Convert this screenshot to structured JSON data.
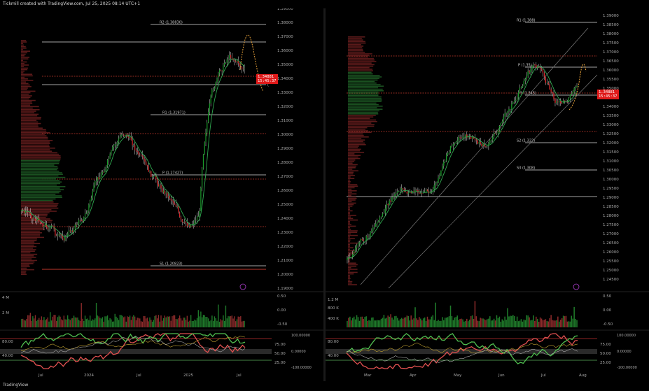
{
  "header": {
    "text": "Tickmill created with TradingView.com, Jul 25, 2025 08:14 UTC+1"
  },
  "footer": {
    "logo": "TradingView"
  },
  "colors": {
    "up": "#1a9c2a",
    "down": "#e0262a",
    "pivot": "#ffffff",
    "dotted": "#c0392b",
    "profile": "#6b1e1e",
    "profile_hi": "#1e5e26",
    "panel_bg": "#000000"
  },
  "left": {
    "axis": [
      "1.39000",
      "1.38000",
      "1.37000",
      "1.36000",
      "1.35000",
      "1.34000",
      "1.33000",
      "1.32000",
      "1.31000",
      "1.30000",
      "1.29000",
      "1.28000",
      "1.27000",
      "1.26000",
      "1.25000",
      "1.24000",
      "1.23000",
      "1.22000",
      "1.21000",
      "1.20000",
      "1.19000"
    ],
    "levels": {
      "r2": "R2 (1.38830)",
      "r1": "R1 (1.31971)",
      "p": "P (1.27427)",
      "s1": "S1 (1.20823)"
    },
    "level_suffix": "(",
    "price_tag": {
      "price": "1.34881",
      "time": "15:45:37"
    },
    "vol_axis": [
      "4 M",
      "2 M"
    ],
    "osc1_axis": [
      "0.50",
      "0.00",
      "-0.50"
    ],
    "osc2_axis": [
      "75.00",
      "50.00",
      "25.00"
    ],
    "osc2_left": [
      "80.00",
      "40.00"
    ],
    "osc3_axis": [
      "100.00000",
      "0.00000",
      "-100.00000"
    ],
    "time_axis": [
      "Jul",
      "2024",
      "Jul",
      "2025",
      "Jul"
    ]
  },
  "right": {
    "axis": [
      "1.39000",
      "1.38500",
      "1.38000",
      "1.37500",
      "1.37000",
      "1.36500",
      "1.36000",
      "1.35500",
      "1.35000",
      "1.34500",
      "1.34000",
      "1.33500",
      "1.33000",
      "1.32500",
      "1.32000",
      "1.31500",
      "1.31000",
      "1.30500",
      "1.30000",
      "1.29500",
      "1.29000",
      "1.28500",
      "1.28000",
      "1.27500",
      "1.27000",
      "1.26500",
      "1.26000",
      "1.25500",
      "1.25000",
      "1.24500"
    ],
    "levels": {
      "r1": "R1 (1.388)",
      "p": "P (1.35)",
      "s1": "S (1.345)",
      "s2": "S2 (1.322)",
      "s3": "S3 (1.308)"
    },
    "price_tag": {
      "price": "1.34881",
      "time": "15:45:37"
    },
    "vol_axis": [
      "1.2 M",
      "800 K",
      "400 K"
    ],
    "osc1_axis": [
      "0.50",
      "0.00",
      "-0.50"
    ],
    "osc2_axis": [
      "75.00",
      "50.00",
      "25.00"
    ],
    "osc2_left": [
      "80.00",
      "40.00"
    ],
    "osc3_axis": [
      "100.00000",
      "0.00000",
      "-100.00000"
    ],
    "time_axis": [
      "Mar",
      "Apr",
      "May",
      "Jun",
      "Jul",
      "Aug"
    ]
  }
}
